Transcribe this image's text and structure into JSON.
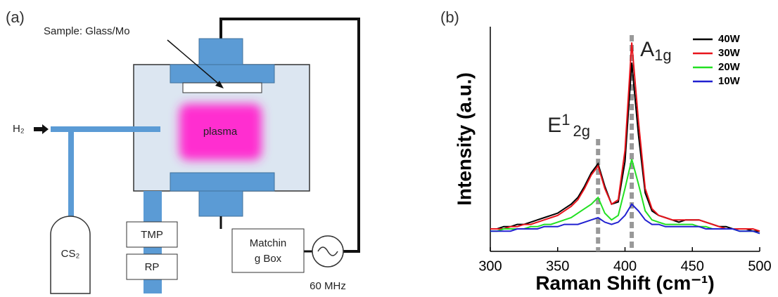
{
  "diagram": {
    "panel_label": "(a)",
    "sample_label": "Sample: Glass/Mo",
    "plasma_label": "plasma",
    "gas_inlet": "H₂",
    "source_gas": "CS₂",
    "pump_1": "TMP",
    "pump_2": "RP",
    "matching_box": [
      "Matchin",
      "g Box"
    ],
    "rf_source": "60 MHz"
  },
  "chart_data": {
    "type": "line",
    "panel_label": "(b)",
    "xlabel": "Raman Shift (cm⁻¹)",
    "ylabel": "Intensity (a.u.)",
    "x": [
      300,
      305,
      310,
      315,
      320,
      325,
      330,
      335,
      340,
      345,
      350,
      355,
      360,
      365,
      370,
      375,
      380,
      385,
      390,
      395,
      400,
      405,
      410,
      415,
      420,
      425,
      430,
      435,
      440,
      445,
      450,
      455,
      460,
      465,
      470,
      475,
      480,
      485,
      490,
      495,
      500
    ],
    "series": [
      {
        "name": "40W",
        "color": "#000000",
        "values": [
          10,
          10,
          11,
          11,
          12,
          12,
          13,
          14,
          15,
          16,
          17,
          19,
          21,
          24,
          29,
          35,
          39,
          29,
          21,
          22,
          40,
          84,
          52,
          26,
          18,
          16,
          15,
          14,
          13,
          14,
          14,
          14,
          13,
          12,
          11,
          11,
          10,
          10,
          10,
          9,
          9
        ]
      },
      {
        "name": "30W",
        "color": "#e8141c",
        "values": [
          10,
          10,
          10,
          11,
          11,
          12,
          12,
          13,
          14,
          15,
          16,
          18,
          20,
          23,
          28,
          34,
          38,
          28,
          21,
          23,
          45,
          93,
          58,
          28,
          19,
          16,
          15,
          14,
          14,
          14,
          14,
          14,
          13,
          12,
          11,
          10,
          10,
          10,
          10,
          10,
          9
        ]
      },
      {
        "name": "20W",
        "color": "#22e022",
        "values": [
          9,
          9,
          10,
          10,
          10,
          10,
          11,
          11,
          12,
          12,
          13,
          14,
          15,
          17,
          19,
          21,
          24,
          17,
          14,
          16,
          28,
          41,
          30,
          18,
          14,
          13,
          12,
          12,
          12,
          12,
          12,
          11,
          11,
          10,
          10,
          10,
          10,
          9,
          9,
          9,
          8
        ]
      },
      {
        "name": "10W",
        "color": "#2020d0",
        "values": [
          9,
          9,
          9,
          9,
          10,
          10,
          10,
          10,
          11,
          11,
          11,
          12,
          12,
          12,
          13,
          14,
          15,
          13,
          12,
          13,
          16,
          21,
          18,
          14,
          12,
          12,
          11,
          11,
          11,
          11,
          11,
          11,
          10,
          10,
          10,
          10,
          10,
          9,
          9,
          9,
          8
        ]
      }
    ],
    "xlim": [
      300,
      500
    ],
    "xticks": [
      300,
      350,
      400,
      450,
      500
    ],
    "ylim": [
      0,
      100
    ],
    "legend": "upper right",
    "annotations": [
      {
        "base": "E",
        "sup": "1",
        "sub": "2g",
        "x": 380
      },
      {
        "base": "A",
        "sub": "1g",
        "x": 405
      }
    ]
  }
}
